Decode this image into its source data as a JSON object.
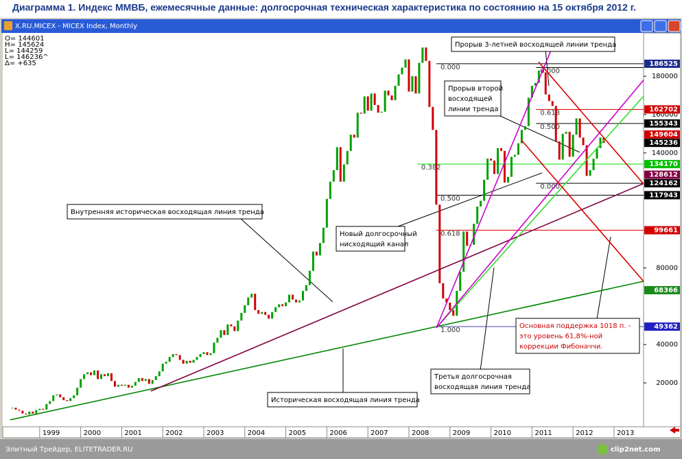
{
  "chart_data": {
    "type": "candlestick",
    "title": "Диаграмма 1. Индекс ММВБ, ежемесячные данные: долгосрочная техническая характеристика по состоянию на 15 октября 2012 г.",
    "window_title": "X.RU.MICEX - MICEX Index, Monthly",
    "info": [
      "O= 144601",
      "H= 145624",
      "L= 144259",
      "L= 146236^",
      "Δ=    +635"
    ],
    "footer": "Элитный Трейдер, ELITETRADER.RU",
    "footer_logo": "clip2net.com",
    "xlim": [
      1998.1,
      2013.72
    ],
    "ylim": [
      -2900,
      202600
    ],
    "xticks": [
      1999,
      2000,
      2001,
      2002,
      2003,
      2004,
      2005,
      2006,
      2007,
      2008,
      2009,
      2010,
      2011,
      2012,
      2013
    ],
    "yticks": [
      20000,
      40000,
      80000,
      140000,
      160000,
      180000
    ],
    "up_color": "#00a000",
    "down_color": "#d00000",
    "x": [
      1998.333,
      1998.417,
      1998.5,
      1998.583,
      1998.667,
      1998.75,
      1998.833,
      1998.917,
      1999,
      1999.083,
      1999.167,
      1999.25,
      1999.333,
      1999.417,
      1999.5,
      1999.583,
      1999.667,
      1999.75,
      1999.833,
      1999.917,
      2000,
      2000.083,
      2000.167,
      2000.25,
      2000.333,
      2000.417,
      2000.5,
      2000.583,
      2000.667,
      2000.75,
      2000.833,
      2000.917,
      2001,
      2001.083,
      2001.167,
      2001.25,
      2001.333,
      2001.417,
      2001.5,
      2001.583,
      2001.667,
      2001.75,
      2001.833,
      2001.917,
      2002,
      2002.083,
      2002.167,
      2002.25,
      2002.333,
      2002.417,
      2002.5,
      2002.583,
      2002.667,
      2002.75,
      2002.833,
      2002.917,
      2003,
      2003.083,
      2003.167,
      2003.25,
      2003.333,
      2003.417,
      2003.5,
      2003.583,
      2003.667,
      2003.75,
      2003.833,
      2003.917,
      2004,
      2004.083,
      2004.167,
      2004.25,
      2004.333,
      2004.417,
      2004.5,
      2004.583,
      2004.667,
      2004.75,
      2004.833,
      2004.917,
      2005,
      2005.083,
      2005.167,
      2005.25,
      2005.333,
      2005.417,
      2005.5,
      2005.583,
      2005.667,
      2005.75,
      2005.833,
      2005.917,
      2006,
      2006.083,
      2006.167,
      2006.25,
      2006.333,
      2006.417,
      2006.5,
      2006.583,
      2006.667,
      2006.75,
      2006.833,
      2006.917,
      2007,
      2007.083,
      2007.167,
      2007.25,
      2007.333,
      2007.417,
      2007.5,
      2007.583,
      2007.667,
      2007.75,
      2007.833,
      2007.917,
      2008,
      2008.083,
      2008.167,
      2008.25,
      2008.333,
      2008.417,
      2008.5,
      2008.583,
      2008.667,
      2008.75,
      2008.833,
      2008.917,
      2009,
      2009.083,
      2009.167,
      2009.25,
      2009.333,
      2009.417,
      2009.5,
      2009.583,
      2009.667,
      2009.75,
      2009.833,
      2009.917,
      2010,
      2010.083,
      2010.167,
      2010.25,
      2010.333,
      2010.417,
      2010.5,
      2010.583,
      2010.667,
      2010.75,
      2010.833,
      2010.917,
      2011,
      2011.083,
      2011.167,
      2011.25,
      2011.333,
      2011.417,
      2011.5,
      2011.583,
      2011.667,
      2011.75,
      2011.833,
      2011.917,
      2012,
      2012.083,
      2012.167,
      2012.25,
      2012.333,
      2012.417,
      2012.5,
      2012.583,
      2012.667,
      2012.75
    ],
    "values": [
      7000,
      6000,
      5500,
      4000,
      3500,
      5000,
      4000,
      5800,
      6500,
      6000,
      9000,
      10500,
      13500,
      14000,
      12500,
      11000,
      10500,
      12000,
      13500,
      17500,
      22000,
      24500,
      25500,
      24000,
      26500,
      22000,
      24500,
      23500,
      25000,
      21000,
      18000,
      19000,
      18500,
      19000,
      17500,
      18500,
      20500,
      22500,
      21000,
      22000,
      19500,
      21500,
      23500,
      26000,
      30000,
      31000,
      33500,
      35000,
      34500,
      32000,
      30000,
      31500,
      30500,
      32000,
      33500,
      35000,
      36000,
      34500,
      35500,
      41000,
      43500,
      47500,
      45000,
      50500,
      49500,
      47000,
      52500,
      56500,
      60500,
      64500,
      66500,
      58000,
      56000,
      57000,
      55500,
      53500,
      57000,
      59500,
      61000,
      60000,
      62000,
      66000,
      63500,
      62000,
      63000,
      68000,
      71000,
      78500,
      88500,
      86500,
      93000,
      101000,
      116000,
      125000,
      131000,
      143000,
      125000,
      134000,
      141000,
      149500,
      148000,
      161000,
      160500,
      169500,
      162000,
      171000,
      165000,
      161000,
      161500,
      172500,
      170000,
      167500,
      175000,
      181000,
      184500,
      188800,
      172000,
      180000,
      171000,
      187000,
      195000,
      188000,
      164000,
      152000,
      113000,
      72000,
      64000,
      61900,
      58000,
      55000,
      68000,
      78000,
      99000,
      91500,
      92000,
      103000,
      112000,
      115000,
      126000,
      137000,
      136000,
      129000,
      142500,
      141000,
      124500,
      127500,
      138000,
      139000,
      145000,
      152000,
      154000,
      168800,
      175000,
      176500,
      183000,
      182000,
      170500,
      167000,
      164500,
      146000,
      136500,
      150000,
      151000,
      138000,
      149500,
      158000,
      148000,
      144000,
      128000,
      131000,
      137000,
      142500,
      148000,
      145236
    ],
    "trend_lines": [
      {
        "color": "#008800",
        "from": [
          1998.28,
          700
        ],
        "to": [
          2013.72,
          73000
        ]
      },
      {
        "color": "#800040",
        "from": [
          2001.71,
          15700
        ],
        "to": [
          2013.72,
          124000
        ]
      },
      {
        "color": "#33dd33",
        "from": [
          2008.67,
          48700
        ],
        "to": [
          2013.72,
          169600
        ]
      },
      {
        "color": "#cc00cc",
        "from": [
          2008.67,
          48700
        ],
        "to": [
          2011.55,
          198000
        ]
      },
      {
        "color": "#cc00cc",
        "from": [
          2008.67,
          48700
        ],
        "to": [
          2013.72,
          178000
        ]
      },
      {
        "color": "#dd0000",
        "from": [
          2011.16,
          187500
        ],
        "to": [
          2013.72,
          123800
        ]
      },
      {
        "color": "#dd0000",
        "from": [
          2010.75,
          146500
        ],
        "to": [
          2013.72,
          73000
        ]
      }
    ],
    "fib_levels": [
      {
        "label": "0.000",
        "value": 186525,
        "x0": 2008.67,
        "color": "#000000"
      },
      {
        "label": "0.382",
        "value": 134170,
        "x0": 2008.2,
        "color": "#00dd00"
      },
      {
        "label": "0.500",
        "value": 117943,
        "x0": 2008.67,
        "color": "#000000"
      },
      {
        "label": "0.618",
        "value": 99661,
        "x0": 2008.67,
        "color": "#dd0000"
      },
      {
        "label": "1.000",
        "value": 49362,
        "x0": 2008.67,
        "color": "#4040a0"
      },
      {
        "label": "0.000",
        "value": 184500,
        "x0": 2011.1,
        "color": "#000000"
      },
      {
        "label": "0.618",
        "value": 162702,
        "x0": 2011.1,
        "color": "#dd0000"
      },
      {
        "label": "0.500",
        "value": 155343,
        "x0": 2011.1,
        "color": "#000000"
      },
      {
        "label": "0.000",
        "value": 124162,
        "x0": 2011.1,
        "color": "#000000"
      }
    ],
    "price_labels": [
      {
        "value": 186525,
        "color": "#1c2c8c"
      },
      {
        "value": 162702,
        "color": "#d00000"
      },
      {
        "value": 155343,
        "color": "#000000"
      },
      {
        "value": 149604,
        "color": "#d00000"
      },
      {
        "value": 145236,
        "color": "#000000"
      },
      {
        "value": 134170,
        "color": "#00c000"
      },
      {
        "value": 128612,
        "color": "#800040"
      },
      {
        "value": 124162,
        "color": "#000000"
      },
      {
        "value": 117943,
        "color": "#000000"
      },
      {
        "value": 99661,
        "color": "#d00000"
      },
      {
        "value": 68366,
        "color": "#1a8a1a"
      },
      {
        "value": 49362,
        "color": "#2020c0"
      }
    ],
    "annotations": [
      {
        "lines": [
          "Прорыв 3-летней восходящей линии тренда"
        ],
        "color": "#000000"
      },
      {
        "lines": [
          "Прорыв второй",
          "восходящей",
          "линии тренда"
        ],
        "color": "#000000"
      },
      {
        "lines": [
          "Внутренняя историческая восходящая линия тренда"
        ],
        "color": "#000000"
      },
      {
        "lines": [
          "Новый долгосрочный",
          "нисходящий канал"
        ],
        "color": "#000000"
      },
      {
        "lines": [
          "Основная поддержка 1018 п. -",
          "это уровень 61,8%-ной",
          "коррекции Фибоначчи."
        ],
        "color": "#cc0000"
      },
      {
        "lines": [
          "Третья долгосрочная",
          "восходящая линия тренда"
        ],
        "color": "#000000"
      },
      {
        "lines": [
          "Историческая восходящая линия тренда"
        ],
        "color": "#000000"
      }
    ]
  }
}
